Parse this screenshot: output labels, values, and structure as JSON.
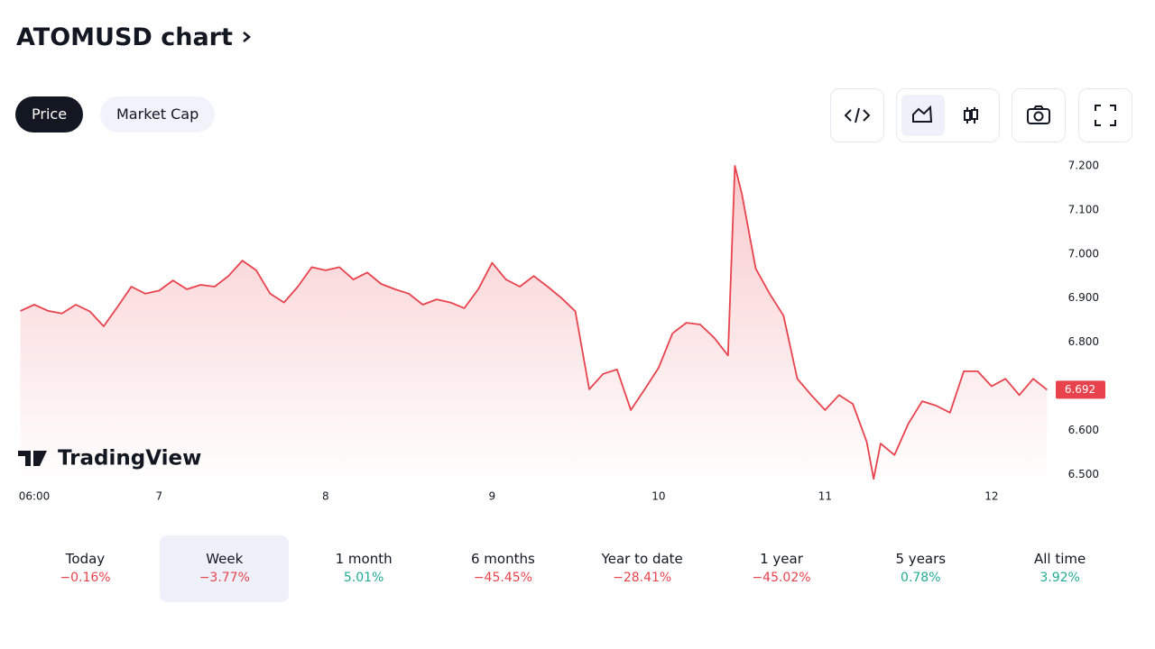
{
  "header": {
    "title": "ATOMUSD chart"
  },
  "tabs": [
    "Price",
    "Market Cap"
  ],
  "chart_data": {
    "type": "line",
    "color": "#e8434d",
    "watermark": "TradingView",
    "x": [
      -2,
      0,
      2,
      4,
      6,
      8,
      10,
      12,
      14,
      16,
      18,
      20,
      22,
      24,
      26,
      28,
      30,
      32,
      34,
      36,
      38,
      40,
      42,
      44,
      46,
      48,
      50,
      52,
      54,
      56,
      58,
      60,
      62,
      64,
      66,
      68,
      70,
      72,
      74,
      76,
      78,
      80,
      82,
      84,
      86,
      88,
      90,
      92,
      94,
      96,
      98,
      100,
      101,
      102,
      104,
      106,
      108,
      110,
      112,
      114,
      116,
      118,
      120,
      121,
      122,
      124,
      126,
      128,
      130,
      132,
      134,
      136,
      138,
      140,
      142,
      144,
      146
    ],
    "values": [
      6.871,
      6.885,
      6.871,
      6.865,
      6.885,
      6.87,
      6.836,
      6.88,
      6.926,
      6.91,
      6.917,
      6.94,
      6.92,
      6.93,
      6.926,
      6.95,
      6.985,
      6.963,
      6.91,
      6.89,
      6.926,
      6.97,
      6.963,
      6.97,
      6.942,
      6.958,
      6.932,
      6.92,
      6.91,
      6.885,
      6.897,
      6.89,
      6.877,
      6.92,
      6.98,
      6.942,
      6.926,
      6.95,
      6.926,
      6.9,
      6.87,
      6.693,
      6.728,
      6.738,
      6.646,
      6.693,
      6.742,
      6.82,
      6.844,
      6.84,
      6.81,
      6.77,
      7.2,
      7.137,
      6.967,
      6.91,
      6.86,
      6.717,
      6.68,
      6.646,
      6.68,
      6.66,
      6.574,
      6.49,
      6.57,
      6.544,
      6.615,
      6.666,
      6.656,
      6.64,
      6.734,
      6.734,
      6.7,
      6.717,
      6.68,
      6.717,
      6.692
    ],
    "xlim": [
      -2.6,
      146.6
    ],
    "ylim": [
      6.472,
      7.249
    ],
    "xticks": [
      {
        "value": 0,
        "label": "06:00"
      },
      {
        "value": 18,
        "label": "7"
      },
      {
        "value": 42,
        "label": "8"
      },
      {
        "value": 66,
        "label": "9"
      },
      {
        "value": 90,
        "label": "10"
      },
      {
        "value": 114,
        "label": "11"
      },
      {
        "value": 138,
        "label": "12"
      }
    ],
    "yticks": [
      {
        "value": 6.5,
        "label": "6.500"
      },
      {
        "value": 6.6,
        "label": "6.600"
      },
      {
        "value": 6.8,
        "label": "6.800"
      },
      {
        "value": 6.9,
        "label": "6.900"
      },
      {
        "value": 7.0,
        "label": "7.000"
      },
      {
        "value": 7.1,
        "label": "7.100"
      },
      {
        "value": 7.2,
        "label": "7.200"
      }
    ],
    "last_price": {
      "value": 6.692,
      "label": "6.692"
    }
  },
  "periods": [
    {
      "label": "Today",
      "change": "−0.16%"
    },
    {
      "label": "Week",
      "change": "−3.77%"
    },
    {
      "label": "1 month",
      "change": "5.01%"
    },
    {
      "label": "6 months",
      "change": "−45.45%"
    },
    {
      "label": "Year to date",
      "change": "−28.41%"
    },
    {
      "label": "1 year",
      "change": "−45.02%"
    },
    {
      "label": "5 years",
      "change": "0.78%"
    },
    {
      "label": "All time",
      "change": "3.92%"
    }
  ]
}
